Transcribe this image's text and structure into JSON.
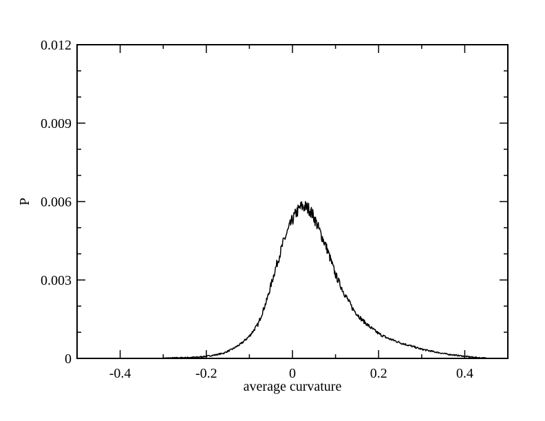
{
  "chart_data": {
    "type": "line",
    "title": "",
    "xlabel": "average curvature",
    "ylabel": "P",
    "xlim": [
      -0.5,
      0.5
    ],
    "ylim": [
      0,
      0.012
    ],
    "x_ticks": [
      -0.4,
      -0.2,
      0,
      0.2,
      0.4
    ],
    "x_tick_labels": [
      "-0.4",
      "-0.2",
      "0",
      "0.2",
      "0.4"
    ],
    "y_ticks": [
      0,
      0.003,
      0.006,
      0.009,
      0.012
    ],
    "y_tick_labels": [
      "0",
      "0.003",
      "0.006",
      "0.009",
      "0.012"
    ],
    "grid": false,
    "legend": "none",
    "series": [
      {
        "color": "#000000",
        "x": [
          -0.3,
          -0.25,
          -0.22,
          -0.2,
          -0.18,
          -0.16,
          -0.14,
          -0.12,
          -0.1,
          -0.08,
          -0.06,
          -0.04,
          -0.02,
          0.0,
          0.01,
          0.02,
          0.03,
          0.04,
          0.05,
          0.06,
          0.08,
          0.1,
          0.12,
          0.14,
          0.16,
          0.18,
          0.2,
          0.22,
          0.25,
          0.28,
          0.3,
          0.33,
          0.36,
          0.4,
          0.43,
          0.45
        ],
        "y": [
          1e-05,
          3e-05,
          5e-05,
          8e-05,
          0.00013,
          0.0002,
          0.00035,
          0.00055,
          0.00085,
          0.0013,
          0.0022,
          0.0034,
          0.0045,
          0.0053,
          0.0056,
          0.0058,
          0.0058,
          0.0057,
          0.0054,
          0.005,
          0.0042,
          0.0032,
          0.0025,
          0.0019,
          0.0015,
          0.0012,
          0.00095,
          0.00078,
          0.0006,
          0.00045,
          0.00035,
          0.00025,
          0.00016,
          8e-05,
          3e-05,
          1e-05
        ]
      }
    ]
  }
}
